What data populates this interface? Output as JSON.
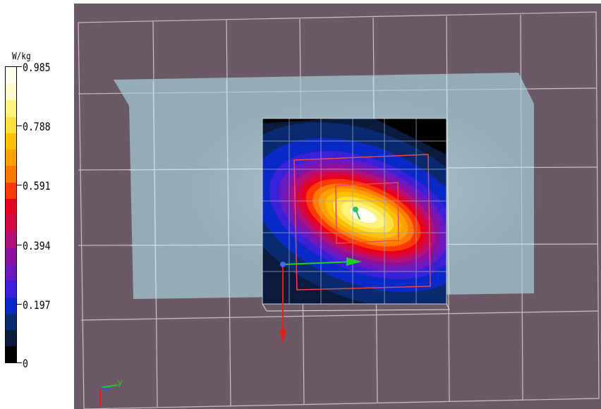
{
  "colorbar": {
    "unit": "W/kg",
    "labels": [
      "0.985",
      "0.788",
      "0.591",
      "0.394",
      "0.197",
      "0"
    ],
    "colors": [
      "#000000",
      "#0a1a3a",
      "#0a2a70",
      "#0a2ac8",
      "#3a20d8",
      "#6a18c0",
      "#8a10a0",
      "#b0107a",
      "#d00848",
      "#e80020",
      "#ff3a00",
      "#ff7a00",
      "#ffa000",
      "#ffc000",
      "#ffe040",
      "#fff27a",
      "#fffacc",
      "#ffffee"
    ]
  },
  "viewport": {
    "background": "#6b5a66",
    "axes": {
      "x_color": "#00cc00",
      "y_color": "#00cc00",
      "z_color": "#e02020",
      "corner_axis_label": "y"
    }
  }
}
